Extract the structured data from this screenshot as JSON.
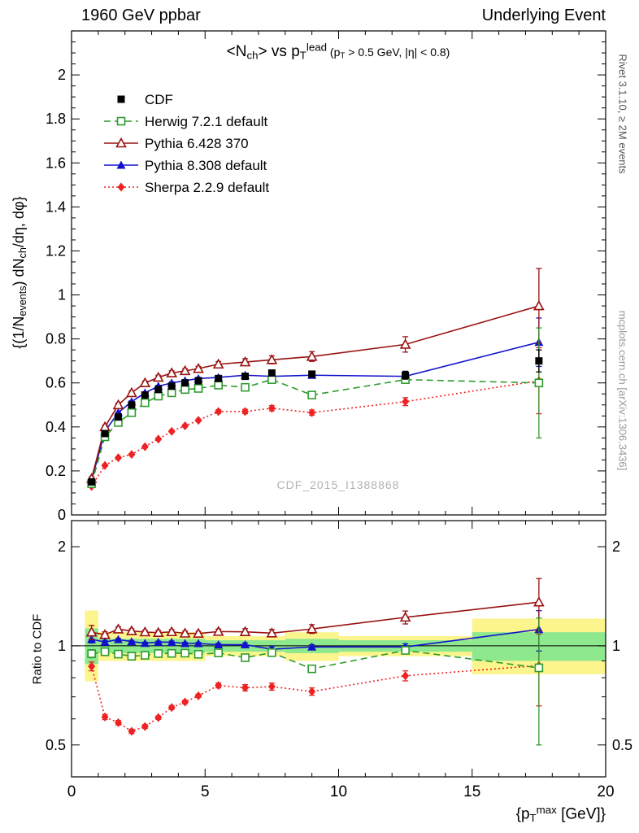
{
  "header": {
    "left": "1960 GeV ppbar",
    "right": "Underlying Event"
  },
  "notes": {
    "rivet": "Rivet 3.1.10, ≥ 2M events",
    "mcplots": "mcplots.cern.ch [arXiv:1306.3436]"
  },
  "watermark": "CDF_2015_I1388868",
  "chart_data": {
    "type": "line",
    "title": "<N_{ch}> vs p_{T}^{lead}",
    "title_condition": " (p_{T} > 0.5 GeV, |η| < 0.8)",
    "xlabel": "{p_{T}^{max} [GeV]}",
    "ylabel": "{(1/N_{events}) dN_{ch}/dη, dφ}",
    "ratio_ylabel": "Ratio to CDF",
    "xlim": [
      0,
      20
    ],
    "ylim": [
      0,
      2.2
    ],
    "ratio_ylim": [
      0.4,
      2.4
    ],
    "ratio_scale": "log",
    "xticks": [
      0,
      5,
      10,
      15,
      20
    ],
    "yticks": [
      0,
      0.2,
      0.4,
      0.6,
      0.8,
      1,
      1.2,
      1.4,
      1.6,
      1.8,
      2
    ],
    "ratio_yticks": [
      0.5,
      1,
      2
    ],
    "ratio_minor_ticks": [
      0.6,
      0.7,
      0.8,
      0.9
    ],
    "x": [
      0.75,
      1.25,
      1.75,
      2.25,
      2.75,
      3.25,
      3.75,
      4.25,
      4.75,
      5.5,
      6.5,
      7.5,
      9,
      12.5,
      17.5
    ],
    "series": [
      {
        "name": "CDF",
        "ref": true,
        "color": "#000000",
        "marker": "square-filled",
        "line": "none",
        "values": [
          0.15,
          0.37,
          0.445,
          0.5,
          0.545,
          0.57,
          0.585,
          0.6,
          0.61,
          0.62,
          0.63,
          0.645,
          0.64,
          0.635,
          0.7
        ],
        "errors": [
          0.008,
          0.008,
          0.008,
          0.008,
          0.008,
          0.008,
          0.008,
          0.008,
          0.008,
          0.01,
          0.012,
          0.012,
          0.012,
          0.018,
          0.05
        ]
      },
      {
        "name": "Herwig 7.2.1 default",
        "ref": false,
        "color": "#2d9b2d",
        "marker": "square-open",
        "line": "dashed",
        "values": [
          0.142,
          0.355,
          0.42,
          0.465,
          0.51,
          0.54,
          0.555,
          0.57,
          0.575,
          0.59,
          0.58,
          0.615,
          0.545,
          0.615,
          0.6
        ],
        "errors": [
          0.004,
          0.004,
          0.004,
          0.004,
          0.004,
          0.004,
          0.004,
          0.004,
          0.004,
          0.006,
          0.008,
          0.01,
          0.01,
          0.015,
          0.25
        ]
      },
      {
        "name": "Pythia 6.428 370",
        "ref": false,
        "color": "#991111",
        "marker": "triangle-open",
        "line": "solid",
        "values": [
          0.165,
          0.4,
          0.5,
          0.555,
          0.6,
          0.625,
          0.645,
          0.655,
          0.665,
          0.685,
          0.695,
          0.705,
          0.72,
          0.775,
          0.95
        ],
        "errors": [
          0.008,
          0.008,
          0.008,
          0.008,
          0.008,
          0.01,
          0.01,
          0.01,
          0.01,
          0.012,
          0.015,
          0.018,
          0.022,
          0.035,
          0.17
        ]
      },
      {
        "name": "Pythia 8.308 default",
        "ref": false,
        "color": "#1111cc",
        "marker": "triangle-filled",
        "line": "solid",
        "values": [
          0.157,
          0.38,
          0.465,
          0.515,
          0.555,
          0.585,
          0.6,
          0.61,
          0.62,
          0.625,
          0.635,
          0.63,
          0.635,
          0.63,
          0.785
        ],
        "errors": [
          0.004,
          0.004,
          0.004,
          0.004,
          0.004,
          0.004,
          0.005,
          0.005,
          0.005,
          0.006,
          0.008,
          0.01,
          0.01,
          0.014,
          0.11
        ]
      },
      {
        "name": "Sherpa 2.2.9 default",
        "ref": false,
        "color": "#ee2222",
        "marker": "diamond-filled",
        "line": "dotted",
        "values": [
          0.13,
          0.225,
          0.26,
          0.275,
          0.31,
          0.345,
          0.38,
          0.405,
          0.43,
          0.47,
          0.47,
          0.485,
          0.465,
          0.515,
          0.61
        ],
        "errors": [
          0.004,
          0.004,
          0.004,
          0.004,
          0.004,
          0.004,
          0.005,
          0.005,
          0.005,
          0.008,
          0.01,
          0.012,
          0.012,
          0.018,
          0.15
        ]
      }
    ],
    "bands": {
      "yellow_color": "#fcf48c",
      "green_color": "#8ee88e",
      "yellow": [
        {
          "x0": 0.5,
          "x1": 1,
          "lo": 0.78,
          "hi": 1.28
        },
        {
          "x0": 1,
          "x1": 5,
          "lo": 0.9,
          "hi": 1.1
        },
        {
          "x0": 5,
          "x1": 8,
          "lo": 0.93,
          "hi": 1.07
        },
        {
          "x0": 8,
          "x1": 10,
          "lo": 0.9,
          "hi": 1.1
        },
        {
          "x0": 10,
          "x1": 15,
          "lo": 0.93,
          "hi": 1.07
        },
        {
          "x0": 15,
          "x1": 20,
          "lo": 0.82,
          "hi": 1.21
        }
      ],
      "green": [
        {
          "x0": 0.5,
          "x1": 1,
          "lo": 0.88,
          "hi": 1.13
        },
        {
          "x0": 1,
          "x1": 5,
          "lo": 0.95,
          "hi": 1.05
        },
        {
          "x0": 5,
          "x1": 8,
          "lo": 0.96,
          "hi": 1.04
        },
        {
          "x0": 8,
          "x1": 10,
          "lo": 0.95,
          "hi": 1.05
        },
        {
          "x0": 10,
          "x1": 15,
          "lo": 0.96,
          "hi": 1.04
        },
        {
          "x0": 15,
          "x1": 20,
          "lo": 0.9,
          "hi": 1.1
        }
      ]
    }
  }
}
